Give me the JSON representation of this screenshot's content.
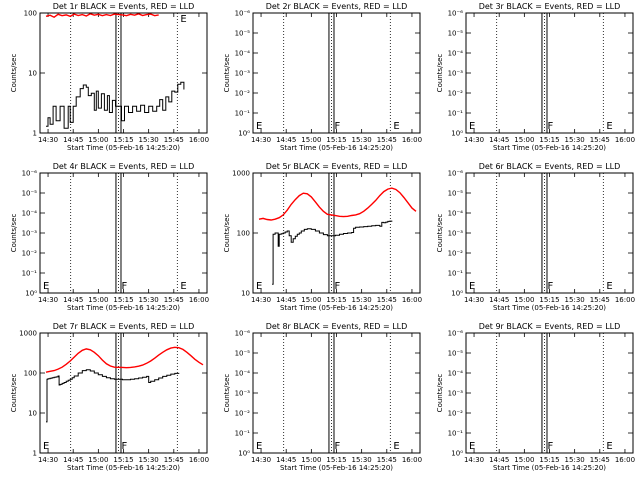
{
  "chart_data": [
    {
      "type": "line",
      "title": "Det 1r BLACK = Events, RED = LLD",
      "xlabel": "Start Time (05-Feb-16 14:25:20)",
      "ylabel": "Counts/sec",
      "yscale": "log",
      "ylim": [
        1,
        100
      ],
      "ytick_labels": [
        "1",
        "10",
        "100"
      ],
      "xlim": [
        14.42,
        16.08
      ],
      "xtick_labels": [
        "14:30",
        "14:45",
        "15:00",
        "15:15",
        "15:30",
        "15:45",
        "16:00"
      ],
      "markers": [
        {
          "t": 14.725,
          "label": ""
        },
        {
          "t": 15.2,
          "label": ""
        },
        {
          "t": 15.785,
          "label": "E"
        }
      ],
      "saa_band": [
        15.175,
        15.225
      ],
      "series": [
        {
          "name": "Events",
          "color": "#000000",
          "x": [
            14.48,
            14.5,
            14.52,
            14.55,
            14.58,
            14.62,
            14.66,
            14.7,
            14.72,
            14.75,
            14.78,
            14.82,
            14.85,
            14.88,
            14.9,
            14.93,
            14.96,
            14.98,
            15.0,
            15.03,
            15.06,
            15.09,
            15.11,
            15.14,
            15.17,
            15.23,
            15.26,
            15.3,
            15.34,
            15.38,
            15.42,
            15.46,
            15.5,
            15.54,
            15.58,
            15.61,
            15.64,
            15.67,
            15.7,
            15.73,
            15.76,
            15.79,
            15.82,
            15.85
          ],
          "y": [
            1.3,
            1.8,
            1.4,
            2.8,
            1.6,
            2.8,
            1.2,
            2.8,
            1.5,
            2.8,
            4.0,
            5.5,
            6.3,
            5.8,
            4.2,
            4.6,
            2.4,
            5.0,
            2.6,
            4.5,
            2.4,
            4.2,
            2.2,
            3.5,
            2.8,
            1.6,
            2.8,
            2.2,
            2.8,
            2.3,
            2.9,
            2.2,
            2.8,
            2.3,
            2.8,
            3.6,
            2.4,
            4.0,
            3.3,
            5.0,
            4.8,
            6.5,
            7.0,
            5.3
          ]
        },
        {
          "name": "LLD",
          "color": "#ff0000",
          "x": [
            14.48,
            14.52,
            14.56,
            14.6,
            14.64,
            14.68,
            14.72,
            14.76,
            14.8,
            14.84,
            14.88,
            14.92,
            14.96,
            15.0,
            15.04,
            15.08,
            15.12,
            15.16,
            15.24,
            15.28,
            15.32,
            15.36,
            15.4,
            15.44,
            15.48,
            15.52,
            15.56,
            15.6
          ],
          "y": [
            88,
            92,
            85,
            95,
            90,
            93,
            88,
            96,
            91,
            94,
            89,
            97,
            92,
            95,
            90,
            94,
            91,
            96,
            93,
            90,
            95,
            92,
            97,
            91,
            94,
            96,
            90,
            93
          ]
        }
      ]
    },
    {
      "type": "line",
      "title": "Det 2r BLACK = Events, RED = LLD",
      "xlabel": "Start Time (05-Feb-16 14:25:20)",
      "ylabel": "Counts/sec",
      "yscale": "log",
      "ylim": [
        1,
        1e-06
      ],
      "ytick_labels": [
        "10⁰",
        "10⁻¹",
        "10⁻²",
        "10⁻³",
        "10⁻⁴",
        "10⁻⁵",
        "10⁻⁶"
      ],
      "xlim": [
        14.42,
        16.08
      ],
      "xtick_labels": [
        "14:30",
        "14:45",
        "15:00",
        "15:15",
        "15:30",
        "15:45",
        "16:00"
      ],
      "markers": [
        {
          "t": 14.42,
          "label": "E"
        },
        {
          "t": 14.725,
          "label": ""
        },
        {
          "t": 15.2,
          "label": "F"
        },
        {
          "t": 15.785,
          "label": "E"
        }
      ],
      "saa_band": [
        15.175,
        15.225
      ],
      "series": []
    },
    {
      "type": "line",
      "title": "Det 3r BLACK = Events, RED = LLD",
      "xlabel": "Start Time (05-Feb-16 14:25:20)",
      "ylabel": "Counts/sec",
      "yscale": "log",
      "ylim": [
        1,
        1e-06
      ],
      "ytick_labels": [
        "10⁰",
        "10⁻¹",
        "10⁻²",
        "10⁻³",
        "10⁻⁴",
        "10⁻⁵",
        "10⁻⁶"
      ],
      "xlim": [
        14.42,
        16.08
      ],
      "xtick_labels": [
        "14:30",
        "14:45",
        "15:00",
        "15:15",
        "15:30",
        "15:45",
        "16:00"
      ],
      "markers": [
        {
          "t": 14.42,
          "label": "E"
        },
        {
          "t": 14.725,
          "label": ""
        },
        {
          "t": 15.2,
          "label": "F"
        },
        {
          "t": 15.785,
          "label": "E"
        }
      ],
      "saa_band": [
        15.175,
        15.225
      ],
      "series": []
    },
    {
      "type": "line",
      "title": "Det 4r BLACK = Events, RED = LLD",
      "xlabel": "Start Time (05-Feb-16 14:25:20)",
      "ylabel": "Counts/sec",
      "yscale": "log",
      "ylim": [
        1,
        1e-06
      ],
      "ytick_labels": [
        "10⁰",
        "10⁻¹",
        "10⁻²",
        "10⁻³",
        "10⁻⁴",
        "10⁻⁵",
        "10⁻⁶"
      ],
      "xlim": [
        14.42,
        16.08
      ],
      "xtick_labels": [
        "14:30",
        "14:45",
        "15:00",
        "15:15",
        "15:30",
        "15:45",
        "16:00"
      ],
      "markers": [
        {
          "t": 14.42,
          "label": "E"
        },
        {
          "t": 14.725,
          "label": ""
        },
        {
          "t": 15.2,
          "label": "F"
        },
        {
          "t": 15.785,
          "label": "E"
        }
      ],
      "saa_band": [
        15.175,
        15.225
      ],
      "series": []
    },
    {
      "type": "line",
      "title": "Det 5r BLACK = Events, RED = LLD",
      "xlabel": "Start Time (05-Feb-16 14:25:20)",
      "ylabel": "Counts/sec",
      "yscale": "log",
      "ylim": [
        10,
        1000
      ],
      "ytick_labels": [
        "10",
        "100",
        "1000"
      ],
      "xlim": [
        14.42,
        16.08
      ],
      "xtick_labels": [
        "14:30",
        "14:45",
        "15:00",
        "15:15",
        "15:30",
        "15:45",
        "16:00"
      ],
      "markers": [
        {
          "t": 14.42,
          "label": "E"
        },
        {
          "t": 14.725,
          "label": ""
        },
        {
          "t": 15.2,
          "label": "F"
        },
        {
          "t": 15.785,
          "label": ""
        }
      ],
      "saa_band": [
        15.175,
        15.225
      ],
      "series": [
        {
          "name": "Events",
          "color": "#000000",
          "x": [
            14.61,
            14.62,
            14.64,
            14.66,
            14.67,
            14.68,
            14.7,
            14.72,
            14.74,
            14.76,
            14.78,
            14.8,
            14.82,
            14.84,
            14.86,
            14.88,
            14.9,
            14.93,
            14.96,
            15.0,
            15.04,
            15.08,
            15.12,
            15.16,
            15.24,
            15.28,
            15.32,
            15.36,
            15.4,
            15.42,
            15.44,
            15.48,
            15.52,
            15.56,
            15.6,
            15.64,
            15.68,
            15.7,
            15.72,
            15.74,
            15.76,
            15.78,
            15.8
          ],
          "y": [
            14,
            95,
            100,
            100,
            60,
            95,
            97,
            100,
            104,
            108,
            90,
            70,
            80,
            88,
            95,
            100,
            108,
            115,
            118,
            115,
            108,
            100,
            94,
            90,
            92,
            95,
            98,
            100,
            102,
            120,
            125,
            126,
            128,
            130,
            132,
            134,
            130,
            150,
            148,
            152,
            156,
            158,
            154
          ]
        },
        {
          "name": "LLD",
          "color": "#ff0000",
          "x": [
            14.48,
            14.52,
            14.56,
            14.6,
            14.64,
            14.68,
            14.72,
            14.76,
            14.8,
            14.84,
            14.88,
            14.92,
            14.96,
            15.0,
            15.04,
            15.08,
            15.12,
            15.16,
            15.24,
            15.28,
            15.32,
            15.36,
            15.4,
            15.44,
            15.48,
            15.52,
            15.56,
            15.6,
            15.64,
            15.68,
            15.72,
            15.76,
            15.8,
            15.84,
            15.88,
            15.92,
            15.96,
            16.0,
            16.04
          ],
          "y": [
            170,
            175,
            168,
            165,
            170,
            180,
            200,
            240,
            300,
            360,
            420,
            460,
            450,
            400,
            330,
            270,
            230,
            205,
            195,
            190,
            188,
            190,
            196,
            200,
            210,
            230,
            260,
            300,
            350,
            420,
            490,
            540,
            560,
            530,
            470,
            390,
            320,
            260,
            230
          ]
        }
      ]
    },
    {
      "type": "line",
      "title": "Det 6r BLACK = Events, RED = LLD",
      "xlabel": "Start Time (05-Feb-16 14:25:20)",
      "ylabel": "Counts/sec",
      "yscale": "log",
      "ylim": [
        1,
        1e-06
      ],
      "ytick_labels": [
        "10⁰",
        "10⁻¹",
        "10⁻²",
        "10⁻³",
        "10⁻⁴",
        "10⁻⁵",
        "10⁻⁶"
      ],
      "xlim": [
        14.42,
        16.08
      ],
      "xtick_labels": [
        "14:30",
        "14:45",
        "15:00",
        "15:15",
        "15:30",
        "15:45",
        "16:00"
      ],
      "markers": [
        {
          "t": 14.42,
          "label": "E"
        },
        {
          "t": 14.725,
          "label": ""
        },
        {
          "t": 15.2,
          "label": "F"
        },
        {
          "t": 15.785,
          "label": "E"
        }
      ],
      "saa_band": [
        15.175,
        15.225
      ],
      "series": []
    },
    {
      "type": "line",
      "title": "Det 7r BLACK = Events, RED = LLD",
      "xlabel": "Start Time (05-Feb-16 14:25:20)",
      "ylabel": "Counts/sec",
      "yscale": "log",
      "ylim": [
        1,
        1000
      ],
      "ytick_labels": [
        "1",
        "10",
        "100",
        "1000"
      ],
      "xlim": [
        14.42,
        16.08
      ],
      "xtick_labels": [
        "14:30",
        "14:45",
        "15:00",
        "15:15",
        "15:30",
        "15:45",
        "16:00"
      ],
      "markers": [
        {
          "t": 14.42,
          "label": "E"
        },
        {
          "t": 14.725,
          "label": ""
        },
        {
          "t": 15.2,
          "label": "F"
        },
        {
          "t": 15.785,
          "label": ""
        }
      ],
      "saa_band": [
        15.175,
        15.225
      ],
      "series": [
        {
          "name": "Events",
          "color": "#000000",
          "x": [
            14.48,
            14.49,
            14.5,
            14.52,
            14.54,
            14.56,
            14.58,
            14.6,
            14.61,
            14.62,
            14.64,
            14.66,
            14.68,
            14.7,
            14.72,
            14.74,
            14.76,
            14.8,
            14.84,
            14.88,
            14.92,
            14.96,
            15.0,
            15.04,
            15.08,
            15.12,
            15.16,
            15.24,
            15.28,
            15.32,
            15.36,
            15.4,
            15.44,
            15.48,
            15.5,
            15.52,
            15.56,
            15.6,
            15.64,
            15.68,
            15.72,
            15.76,
            15.8
          ],
          "y": [
            6,
            70,
            72,
            74,
            76,
            78,
            80,
            84,
            50,
            52,
            55,
            58,
            62,
            66,
            70,
            76,
            84,
            100,
            115,
            120,
            112,
            100,
            90,
            82,
            76,
            72,
            70,
            68,
            68,
            70,
            72,
            75,
            78,
            82,
            58,
            62,
            68,
            75,
            82,
            88,
            94,
            98,
            96
          ]
        },
        {
          "name": "LLD",
          "color": "#ff0000",
          "x": [
            14.48,
            14.52,
            14.56,
            14.6,
            14.64,
            14.68,
            14.72,
            14.76,
            14.8,
            14.84,
            14.88,
            14.92,
            14.96,
            15.0,
            15.04,
            15.08,
            15.12,
            15.16,
            15.24,
            15.28,
            15.32,
            15.36,
            15.4,
            15.44,
            15.48,
            15.52,
            15.56,
            15.6,
            15.64,
            15.68,
            15.72,
            15.76,
            15.8,
            15.84,
            15.88,
            15.92,
            15.96,
            16.0,
            16.04
          ],
          "y": [
            105,
            110,
            115,
            125,
            140,
            165,
            200,
            250,
            310,
            370,
            400,
            380,
            330,
            270,
            210,
            170,
            150,
            140,
            138,
            136,
            138,
            142,
            148,
            158,
            175,
            200,
            235,
            280,
            330,
            380,
            420,
            440,
            430,
            390,
            330,
            270,
            220,
            185,
            160
          ]
        }
      ]
    },
    {
      "type": "line",
      "title": "Det 8r BLACK = Events, RED = LLD",
      "xlabel": "Start Time (05-Feb-16 14:25:20)",
      "ylabel": "Counts/sec",
      "yscale": "log",
      "ylim": [
        1,
        1e-06
      ],
      "ytick_labels": [
        "10⁰",
        "10⁻¹",
        "10⁻²",
        "10⁻³",
        "10⁻⁴",
        "10⁻⁵",
        "10⁻⁶"
      ],
      "xlim": [
        14.42,
        16.08
      ],
      "xtick_labels": [
        "14:30",
        "14:45",
        "15:00",
        "15:15",
        "15:30",
        "15:45",
        "16:00"
      ],
      "markers": [
        {
          "t": 14.42,
          "label": "E"
        },
        {
          "t": 14.725,
          "label": ""
        },
        {
          "t": 15.2,
          "label": "F"
        },
        {
          "t": 15.785,
          "label": "E"
        }
      ],
      "saa_band": [
        15.175,
        15.225
      ],
      "series": []
    },
    {
      "type": "line",
      "title": "Det 9r BLACK = Events, RED = LLD",
      "xlabel": "Start Time (05-Feb-16 14:25:20)",
      "ylabel": "Counts/sec",
      "yscale": "log",
      "ylim": [
        1,
        1e-06
      ],
      "ytick_labels": [
        "10⁰",
        "10⁻¹",
        "10⁻²",
        "10⁻³",
        "10⁻⁴",
        "10⁻⁵",
        "10⁻⁶"
      ],
      "xlim": [
        14.42,
        16.08
      ],
      "xtick_labels": [
        "14:30",
        "14:45",
        "15:00",
        "15:15",
        "15:30",
        "15:45",
        "16:00"
      ],
      "markers": [
        {
          "t": 14.42,
          "label": "E"
        },
        {
          "t": 14.725,
          "label": ""
        },
        {
          "t": 15.2,
          "label": "F"
        },
        {
          "t": 15.785,
          "label": "E"
        }
      ],
      "saa_band": [
        15.175,
        15.225
      ],
      "series": []
    }
  ]
}
